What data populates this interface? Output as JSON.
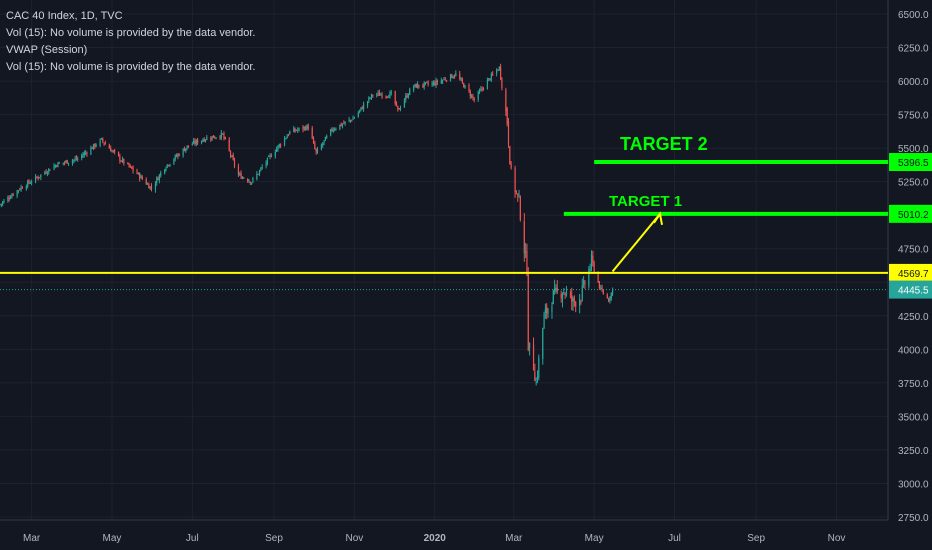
{
  "legend": {
    "symbol_line": "CAC 40 Index, 1D, TVC",
    "vol_line_1": "Vol (15): No volume is provided by the data vendor.",
    "vwap_line": "VWAP (Session)",
    "vol_line_2": "Vol (15): No volume is provided by the data vendor."
  },
  "colors": {
    "background": "#131722",
    "up": "#26a69a",
    "down": "#ef5350",
    "target": "#00ff00",
    "support": "#ffff00",
    "current_price": "#26a69a",
    "grid": "#1e2230",
    "axis_text": "#b2b5be"
  },
  "chart_data": {
    "type": "candlestick",
    "title": "CAC 40 Index, 1D, TVC",
    "x_tick_labels": [
      "Mar",
      "May",
      "Jul",
      "Sep",
      "Nov",
      "2020",
      "Mar",
      "May",
      "Jul",
      "Sep",
      "Nov"
    ],
    "y_tick_labels": [
      "6500.0",
      "6250.0",
      "6000.0",
      "5750.0",
      "5500.0",
      "5250.0",
      "5000.0",
      "4750.0",
      "4500.0",
      "4250.0",
      "4000.0",
      "3750.0",
      "3500.0",
      "3250.0",
      "3000.0",
      "2750.0"
    ],
    "ylim": [
      2720,
      6550
    ],
    "xlim": [
      "2019-02-05",
      "2020-12-20"
    ],
    "grid": true,
    "levels": [
      {
        "label": "TARGET 2",
        "value": 5396.5,
        "price_tag": "5396.5",
        "kind": "target",
        "start": "2020-05-01"
      },
      {
        "label": "TARGET 1",
        "value": 5010.2,
        "price_tag": "5010.2",
        "kind": "target",
        "start": "2020-04-08"
      },
      {
        "label": "",
        "value": 4569.7,
        "price_tag": "4569.7",
        "kind": "support",
        "start": "2019-02-05"
      },
      {
        "label": "",
        "value": 4445.5,
        "price_tag": "4445.5",
        "kind": "current",
        "start": "2019-02-05"
      }
    ],
    "projection_arrow": {
      "from": [
        "2020-05-15",
        4580
      ],
      "to": [
        "2020-06-20",
        5010
      ]
    },
    "series": [
      {
        "type": "ohlc_anchors",
        "values": [
          [
            "2019-02-05",
            5080
          ],
          [
            "2019-02-20",
            5200
          ],
          [
            "2019-03-05",
            5280
          ],
          [
            "2019-03-20",
            5380
          ],
          [
            "2019-04-05",
            5420
          ],
          [
            "2019-04-23",
            5560
          ],
          [
            "2019-05-07",
            5420
          ],
          [
            "2019-05-20",
            5310
          ],
          [
            "2019-05-31",
            5200
          ],
          [
            "2019-06-10",
            5360
          ],
          [
            "2019-06-28",
            5520
          ],
          [
            "2019-07-10",
            5570
          ],
          [
            "2019-07-24",
            5600
          ],
          [
            "2019-08-05",
            5300
          ],
          [
            "2019-08-15",
            5250
          ],
          [
            "2019-08-30",
            5450
          ],
          [
            "2019-09-13",
            5620
          ],
          [
            "2019-09-27",
            5660
          ],
          [
            "2019-10-03",
            5460
          ],
          [
            "2019-10-15",
            5640
          ],
          [
            "2019-10-31",
            5720
          ],
          [
            "2019-11-15",
            5900
          ],
          [
            "2019-11-29",
            5900
          ],
          [
            "2019-12-04",
            5780
          ],
          [
            "2019-12-15",
            5960
          ],
          [
            "2019-12-31",
            5980
          ],
          [
            "2020-01-17",
            6050
          ],
          [
            "2020-01-31",
            5860
          ],
          [
            "2020-02-10",
            6000
          ],
          [
            "2020-02-19",
            6100
          ],
          [
            "2020-02-25",
            5700
          ],
          [
            "2020-02-28",
            5300
          ],
          [
            "2020-03-05",
            5100
          ],
          [
            "2020-03-09",
            4750
          ],
          [
            "2020-03-11",
            4610
          ],
          [
            "2020-03-12",
            4040
          ],
          [
            "2020-03-16",
            3880
          ],
          [
            "2020-03-18",
            3750
          ],
          [
            "2020-03-24",
            4240
          ],
          [
            "2020-03-31",
            4400
          ],
          [
            "2020-04-08",
            4440
          ],
          [
            "2020-04-15",
            4350
          ],
          [
            "2020-04-21",
            4400
          ],
          [
            "2020-04-29",
            4650
          ],
          [
            "2020-05-06",
            4440
          ],
          [
            "2020-05-12",
            4370
          ],
          [
            "2020-05-15",
            4445.5
          ]
        ]
      }
    ]
  }
}
